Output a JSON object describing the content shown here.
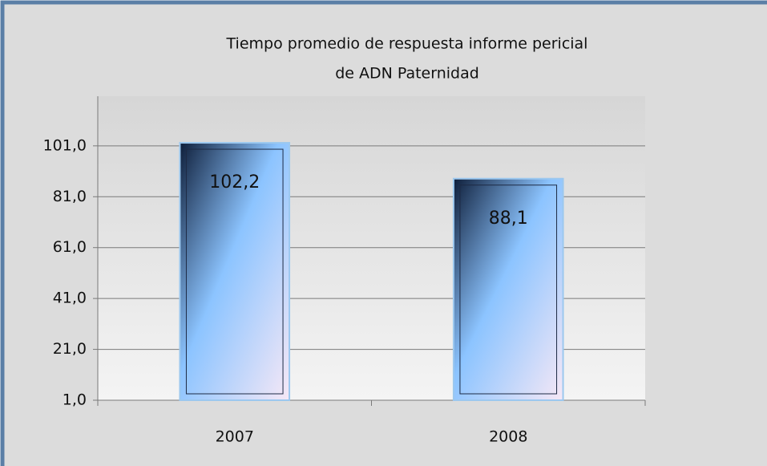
{
  "chart_data": {
    "type": "bar",
    "title": [
      "Tiempo promedio de respuesta informe pericial",
      "de ADN Paternidad"
    ],
    "categories": [
      "2007",
      "2008"
    ],
    "values": [
      102.2,
      88.1
    ],
    "value_labels": [
      "102,2",
      "88,1"
    ],
    "color": "#8cc4ff",
    "ylim": [
      1,
      120.5
    ],
    "yticks": [
      {
        "value": 1,
        "label": "1,0"
      },
      {
        "value": 21,
        "label": "21,0"
      },
      {
        "value": 41,
        "label": "41,0"
      },
      {
        "value": 61,
        "label": "61,0"
      },
      {
        "value": 81,
        "label": "81,0"
      },
      {
        "value": 101,
        "label": "101,0"
      }
    ],
    "grid": true
  }
}
